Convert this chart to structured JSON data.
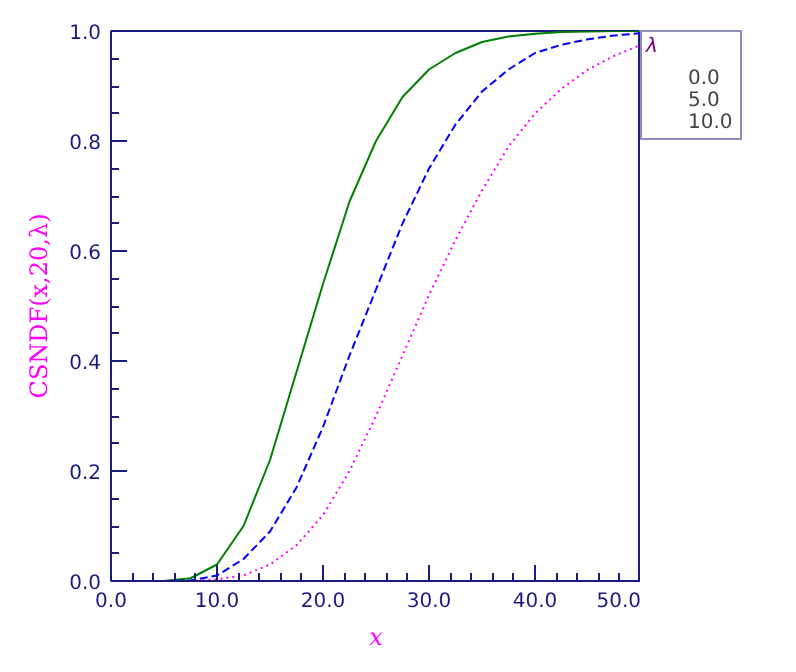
{
  "chart_data": {
    "type": "line",
    "xlabel": "x",
    "ylabel": "CSNDF(x,20,λ)",
    "legend_title": "λ",
    "x": [
      0,
      2.5,
      5,
      7.5,
      10,
      12.5,
      15,
      17.5,
      20,
      22.5,
      25,
      27.5,
      30,
      32.5,
      35,
      37.5,
      40,
      42.5,
      45,
      47.5,
      50
    ],
    "series": [
      {
        "name": "0.0",
        "color": "#008000",
        "line_style": "solid",
        "values": [
          0,
          0,
          0,
          0.005,
          0.03,
          0.1,
          0.22,
          0.38,
          0.54,
          0.69,
          0.8,
          0.88,
          0.93,
          0.96,
          0.98,
          0.99,
          0.995,
          0.998,
          0.999,
          1.0,
          1.0
        ]
      },
      {
        "name": "5.0",
        "color": "#0000ff",
        "line_style": "dashed",
        "values": [
          null,
          null,
          0,
          0.001,
          0.01,
          0.04,
          0.09,
          0.17,
          0.28,
          0.41,
          0.53,
          0.65,
          0.75,
          0.83,
          0.89,
          0.93,
          0.96,
          0.975,
          0.985,
          0.992,
          0.996
        ]
      },
      {
        "name": "10.0",
        "color": "#ff00ff",
        "line_style": "dotted",
        "values": [
          null,
          null,
          null,
          0,
          0.003,
          0.01,
          0.03,
          0.065,
          0.12,
          0.2,
          0.3,
          0.41,
          0.52,
          0.62,
          0.71,
          0.79,
          0.85,
          0.895,
          0.93,
          0.955,
          0.975
        ]
      }
    ],
    "xlim": [
      0,
      50
    ],
    "ylim": [
      0,
      1
    ],
    "xticks": [
      {
        "value": 0,
        "label": "0.0"
      },
      {
        "value": 10,
        "label": "10.0"
      },
      {
        "value": 20,
        "label": "20.0"
      },
      {
        "value": 30,
        "label": "30.0"
      },
      {
        "value": 40,
        "label": "40.0"
      },
      {
        "value": 50,
        "label": "50.0"
      }
    ],
    "yticks": [
      {
        "value": 0,
        "label": "0.0"
      },
      {
        "value": 0.2,
        "label": "0.2"
      },
      {
        "value": 0.4,
        "label": "0.4"
      },
      {
        "value": 0.6,
        "label": "0.6"
      },
      {
        "value": 0.8,
        "label": "0.8"
      },
      {
        "value": 1,
        "label": "1.0"
      }
    ],
    "grid": false,
    "legend": "top right",
    "marker": "none"
  }
}
